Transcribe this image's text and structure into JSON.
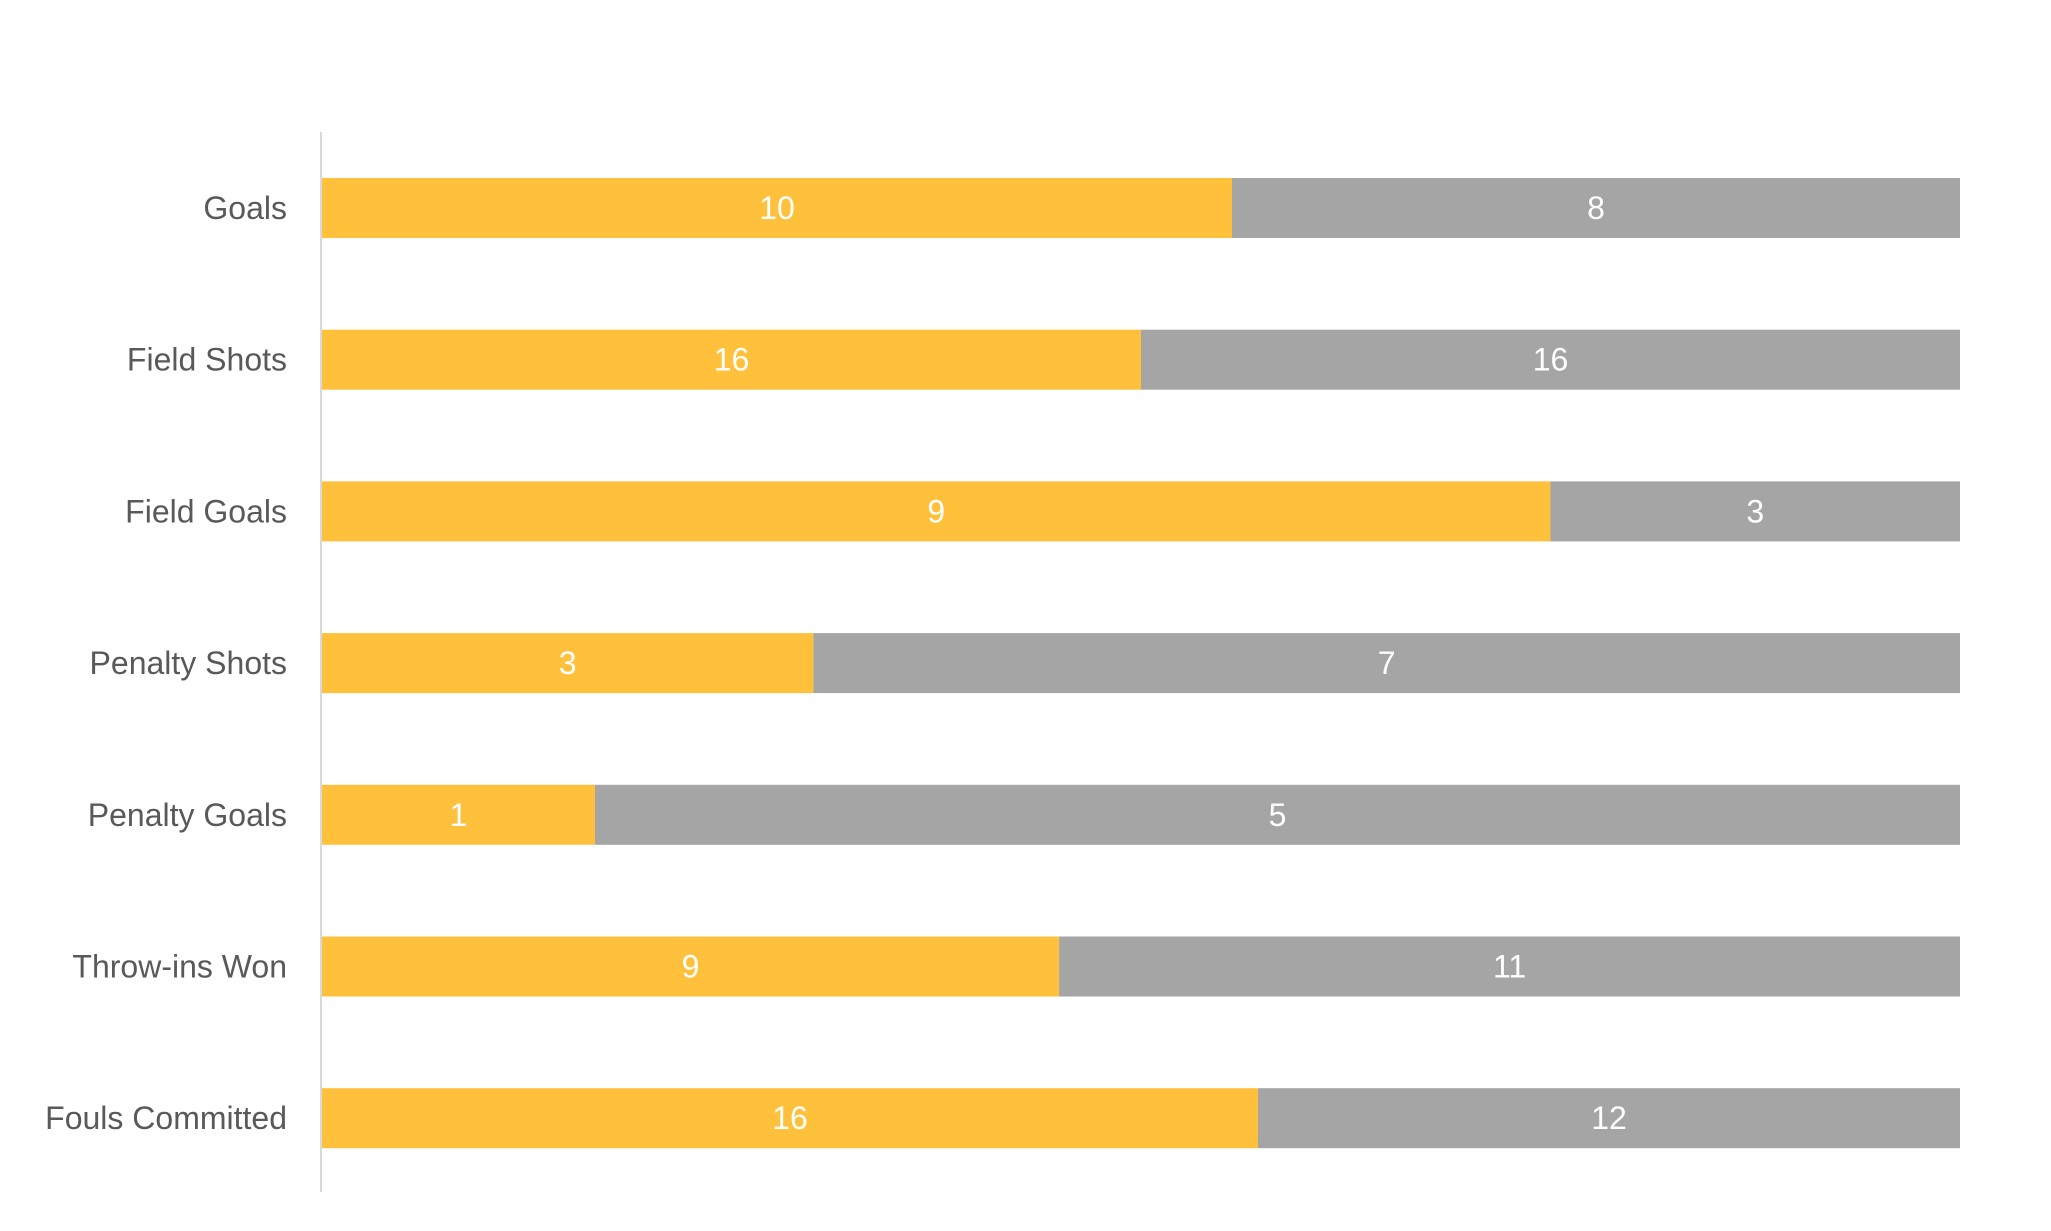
{
  "chart_data": {
    "type": "bar",
    "orientation": "horizontal",
    "stacking": "percent",
    "categories": [
      "Goals",
      "Field Shots",
      "Field Goals",
      "Penalty Shots",
      "Penalty Goals",
      "Throw-ins Won",
      "Fouls Committed"
    ],
    "series": [
      {
        "values": [
          10,
          16,
          9,
          3,
          1,
          9,
          16
        ],
        "color": "#FFC13B"
      },
      {
        "values": [
          8,
          16,
          3,
          7,
          5,
          11,
          12
        ],
        "color": "#A5A5A5"
      }
    ],
    "data_labels": true,
    "grid": false,
    "legend": "none",
    "title": "",
    "xlabel": "",
    "ylabel": ""
  }
}
